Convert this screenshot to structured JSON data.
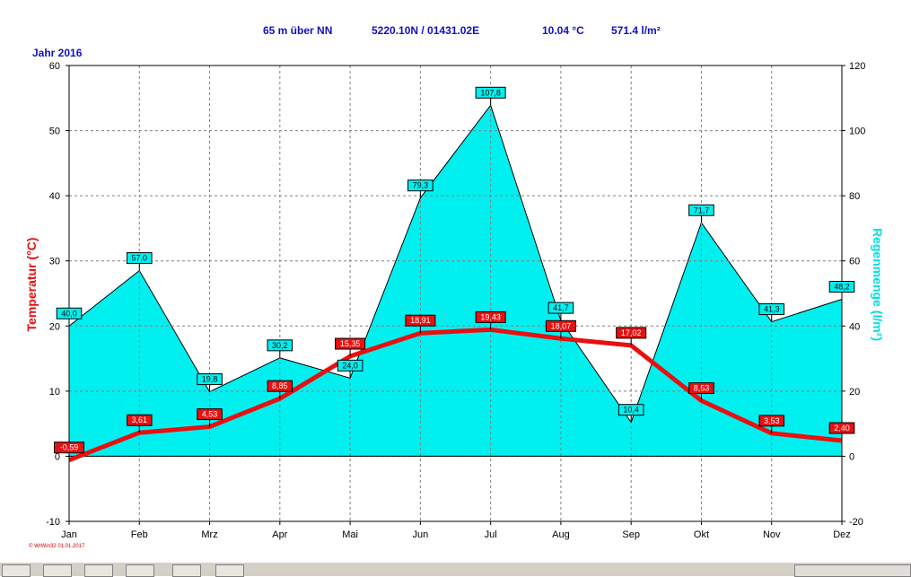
{
  "header": {
    "elevation": "65 m über NN",
    "coordinates": "5220.10N / 01431.02E",
    "mean_temperature": "10.04 °C",
    "total_rain": "571.4 l/m²",
    "year_label": "Jahr 2016"
  },
  "copyright": "© WrWin32  01.01.2017",
  "chart_data": {
    "type": "line",
    "title": "",
    "categories": [
      "Jan",
      "Feb",
      "Mrz",
      "Apr",
      "Mai",
      "Jun",
      "Jul",
      "Aug",
      "Sep",
      "Okt",
      "Nov",
      "Dez"
    ],
    "series": [
      {
        "name": "Temperatur",
        "kind": "line",
        "axis": "left",
        "color": "#e81010",
        "values": [
          -0.59,
          3.61,
          4.53,
          8.85,
          15.35,
          18.91,
          19.43,
          18.07,
          17.02,
          8.53,
          3.53,
          2.4
        ],
        "labels": [
          "-0,59",
          "3,61",
          "4,53",
          "8,85",
          "15,35",
          "18,91",
          "19,43",
          "18,07",
          "17,02",
          "8,53",
          "3,53",
          "2,40"
        ]
      },
      {
        "name": "Regenmenge",
        "kind": "area",
        "axis": "right",
        "color": "#00f0f0",
        "values": [
          40.0,
          57.0,
          19.8,
          30.2,
          24.0,
          79.3,
          107.8,
          41.7,
          10.4,
          71.7,
          41.3,
          48.2
        ],
        "labels": [
          "40,0",
          "57,0",
          "19,8",
          "30,2",
          "24,0",
          "79,3",
          "107,8",
          "41,7",
          "10,4",
          "71,7",
          "41,3",
          "48,2"
        ]
      }
    ],
    "ylabel_left": "Temperatur  (°C)",
    "ylabel_right": "Regenmenge  (l/m²)",
    "ylim_left": [
      -10,
      60
    ],
    "ylim_right": [
      -20,
      120
    ],
    "yticks_left": [
      -10,
      0,
      10,
      20,
      30,
      40,
      50,
      60
    ],
    "yticks_right": [
      -20,
      0,
      20,
      40,
      60,
      80,
      100,
      120
    ],
    "grid": true
  }
}
